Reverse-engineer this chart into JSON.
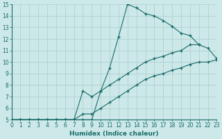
{
  "xlabel": "Humidex (Indice chaleur)",
  "background_color": "#cce8e8",
  "line_color": "#1a6b6b",
  "grid_color": "#aacccc",
  "xlim": [
    0,
    23
  ],
  "ylim": [
    5,
    15
  ],
  "xticks": [
    0,
    1,
    2,
    3,
    4,
    5,
    6,
    7,
    8,
    9,
    10,
    11,
    12,
    13,
    14,
    15,
    16,
    17,
    18,
    19,
    20,
    21,
    22,
    23
  ],
  "yticks": [
    5,
    6,
    7,
    8,
    9,
    10,
    11,
    12,
    13,
    14,
    15
  ],
  "line1": {
    "x": [
      0,
      1,
      2,
      3,
      4,
      5,
      6,
      7,
      8,
      9,
      10,
      11,
      12,
      13,
      14,
      15,
      16,
      17,
      18,
      19,
      20,
      21,
      22,
      23
    ],
    "y": [
      5,
      5,
      5,
      5,
      5,
      5,
      5,
      5,
      5,
      5,
      7.5,
      9.5,
      12.2,
      15.0,
      14.7,
      14.2,
      14.0,
      13.6,
      13.1,
      12.5,
      12.3,
      11.5,
      null,
      null
    ]
  },
  "line2": {
    "x": [
      0,
      1,
      2,
      3,
      4,
      5,
      6,
      7,
      8,
      9,
      10,
      11,
      12,
      13,
      14,
      15,
      16,
      17,
      18,
      19,
      20,
      21,
      22,
      23
    ],
    "y": [
      5,
      5,
      5,
      5,
      5,
      5,
      5,
      5,
      7.5,
      7.0,
      7.5,
      8.0,
      8.5,
      9.0,
      9.5,
      10.0,
      10.3,
      10.5,
      10.8,
      11.0,
      11.5,
      11.5,
      11.2,
      10.3
    ]
  },
  "line3": {
    "x": [
      0,
      1,
      2,
      3,
      4,
      5,
      6,
      7,
      8,
      9,
      10,
      11,
      12,
      13,
      14,
      15,
      16,
      17,
      18,
      19,
      20,
      21,
      22,
      23
    ],
    "y": [
      5,
      5,
      5,
      5,
      5,
      5,
      5,
      5,
      5.5,
      5.5,
      6.0,
      6.5,
      7.0,
      7.5,
      8.0,
      8.5,
      8.8,
      9.0,
      9.3,
      9.5,
      9.8,
      10.0,
      10.0,
      10.2
    ]
  }
}
